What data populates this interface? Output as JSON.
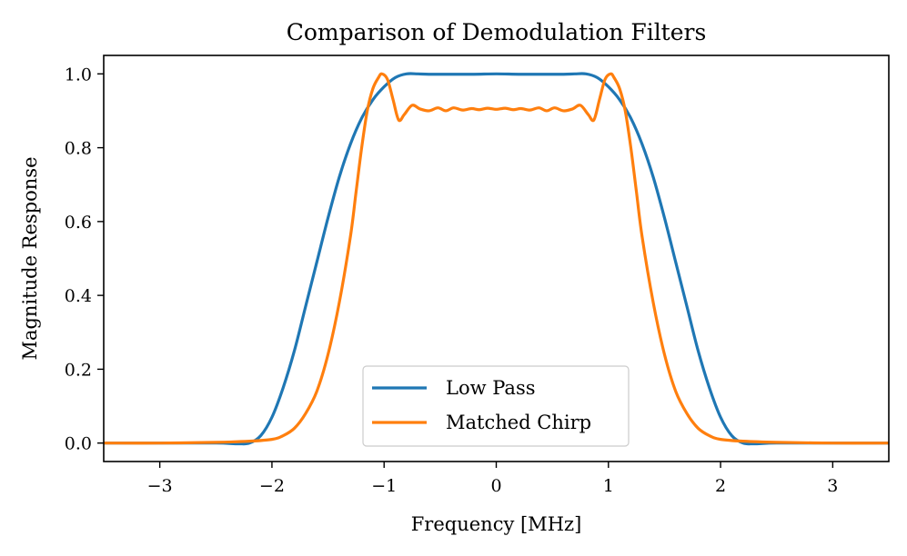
{
  "chart_data": {
    "type": "line",
    "title": "Comparison of Demodulation Filters",
    "xlabel": "Frequency [MHz]",
    "ylabel": "Magnitude Response",
    "xlim": [
      -3.5,
      3.5
    ],
    "ylim": [
      -0.05,
      1.05
    ],
    "xticks": [
      -3,
      -2,
      -1,
      0,
      1,
      2,
      3
    ],
    "xtick_labels": [
      "−3",
      "−2",
      "−1",
      "0",
      "1",
      "2",
      "3"
    ],
    "yticks": [
      0.0,
      0.2,
      0.4,
      0.6,
      0.8,
      1.0
    ],
    "ytick_labels": [
      "0.0",
      "0.2",
      "0.4",
      "0.6",
      "0.8",
      "1.0"
    ],
    "grid": false,
    "legend_position": "lower-center",
    "series": [
      {
        "name": "Low Pass",
        "color": "#1f77b4",
        "x": [
          -3.5,
          -3.0,
          -2.5,
          -2.3,
          -2.2,
          -2.1,
          -2.0,
          -1.9,
          -1.8,
          -1.7,
          -1.6,
          -1.5,
          -1.4,
          -1.3,
          -1.2,
          -1.1,
          -1.0,
          -0.9,
          -0.8,
          -0.7,
          -0.6,
          -0.4,
          -0.2,
          0.0,
          0.2,
          0.4,
          0.6,
          0.7,
          0.8,
          0.9,
          1.0,
          1.1,
          1.2,
          1.3,
          1.4,
          1.5,
          1.6,
          1.7,
          1.8,
          1.9,
          2.0,
          2.1,
          2.2,
          2.3,
          2.5,
          3.0,
          3.5
        ],
        "y": [
          0.0,
          0.0,
          0.0,
          -0.002,
          0.0,
          0.02,
          0.07,
          0.15,
          0.25,
          0.37,
          0.49,
          0.61,
          0.72,
          0.81,
          0.88,
          0.93,
          0.965,
          0.99,
          1.0,
          1.0,
          0.999,
          0.999,
          0.999,
          1.0,
          0.999,
          0.999,
          0.999,
          1.0,
          1.0,
          0.99,
          0.965,
          0.93,
          0.88,
          0.81,
          0.72,
          0.61,
          0.49,
          0.37,
          0.25,
          0.15,
          0.07,
          0.02,
          0.0,
          -0.002,
          0.0,
          0.0,
          0.0
        ]
      },
      {
        "name": "Matched Chirp",
        "color": "#ff7f0e",
        "x": [
          -3.5,
          -3.0,
          -2.5,
          -2.2,
          -2.0,
          -1.9,
          -1.8,
          -1.7,
          -1.6,
          -1.5,
          -1.4,
          -1.3,
          -1.25,
          -1.2,
          -1.15,
          -1.1,
          -1.05,
          -1.02,
          -0.97,
          -0.92,
          -0.87,
          -0.82,
          -0.75,
          -0.68,
          -0.6,
          -0.52,
          -0.45,
          -0.38,
          -0.3,
          -0.22,
          -0.15,
          -0.08,
          0.0,
          0.08,
          0.15,
          0.22,
          0.3,
          0.38,
          0.45,
          0.52,
          0.6,
          0.68,
          0.75,
          0.82,
          0.87,
          0.92,
          0.97,
          1.02,
          1.05,
          1.1,
          1.15,
          1.2,
          1.25,
          1.3,
          1.4,
          1.5,
          1.6,
          1.7,
          1.8,
          1.9,
          2.0,
          2.2,
          2.5,
          3.0,
          3.5
        ],
        "y": [
          0.0,
          0.0,
          0.002,
          0.005,
          0.01,
          0.02,
          0.04,
          0.08,
          0.14,
          0.24,
          0.38,
          0.56,
          0.68,
          0.8,
          0.9,
          0.96,
          0.99,
          1.0,
          0.985,
          0.93,
          0.875,
          0.89,
          0.915,
          0.905,
          0.9,
          0.908,
          0.9,
          0.908,
          0.902,
          0.906,
          0.903,
          0.907,
          0.904,
          0.907,
          0.903,
          0.906,
          0.902,
          0.908,
          0.9,
          0.908,
          0.9,
          0.905,
          0.915,
          0.89,
          0.875,
          0.93,
          0.985,
          1.0,
          0.99,
          0.96,
          0.9,
          0.8,
          0.68,
          0.56,
          0.38,
          0.24,
          0.14,
          0.08,
          0.04,
          0.02,
          0.01,
          0.005,
          0.002,
          0.0,
          0.0
        ]
      }
    ]
  }
}
